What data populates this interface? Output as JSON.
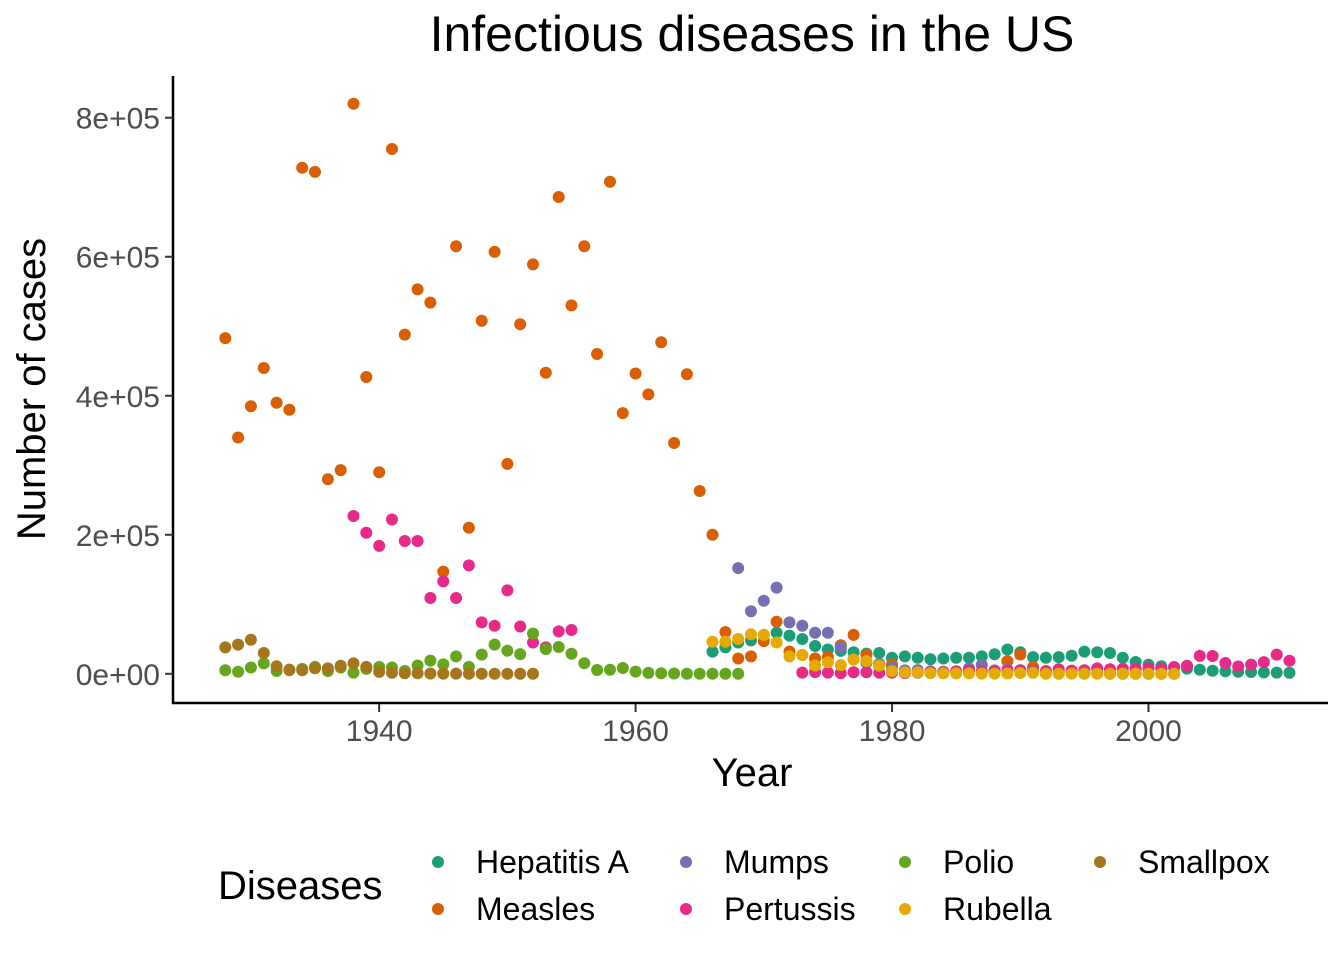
{
  "chart_data": {
    "type": "scatter",
    "title": "Infectious diseases in the US",
    "xlabel": "Year",
    "ylabel": "Number of cases",
    "xlim": [
      1924,
      2014
    ],
    "ylim": [
      -42000,
      860000
    ],
    "x_ticks": [
      1940,
      1960,
      1980,
      2000
    ],
    "x_tick_labels": [
      "1940",
      "1960",
      "1980",
      "2000"
    ],
    "y_ticks": [
      0,
      200000,
      400000,
      600000,
      800000
    ],
    "y_tick_labels": [
      "0e+00",
      "2e+05",
      "4e+05",
      "6e+05",
      "8e+05"
    ],
    "grid": false,
    "legend": {
      "title": "Diseases",
      "position": "bottom",
      "entries": [
        "Hepatitis A",
        "Measles",
        "Mumps",
        "Pertussis",
        "Polio",
        "Rubella",
        "Smallpox"
      ]
    },
    "series": [
      {
        "name": "Hepatitis A",
        "color": "#1b9e77",
        "x": [
          1966,
          1967,
          1968,
          1969,
          1970,
          1971,
          1972,
          1973,
          1974,
          1975,
          1976,
          1977,
          1978,
          1979,
          1980,
          1981,
          1982,
          1983,
          1984,
          1985,
          1986,
          1987,
          1988,
          1989,
          1990,
          1991,
          1992,
          1993,
          1994,
          1995,
          1996,
          1997,
          1998,
          1999,
          2000,
          2001,
          2002,
          2003,
          2004,
          2005,
          2006,
          2007,
          2008,
          2009,
          2010,
          2011
        ],
        "y": [
          32000,
          38000,
          45000,
          48000,
          56000,
          59000,
          55000,
          50000,
          40000,
          35000,
          33000,
          31000,
          29000,
          30000,
          23000,
          25000,
          23000,
          21000,
          22000,
          23000,
          23000,
          25000,
          28000,
          35000,
          31000,
          24000,
          23000,
          24000,
          26000,
          32000,
          31000,
          30000,
          23000,
          17000,
          13000,
          11000,
          9000,
          7500,
          5700,
          4500,
          3600,
          3000,
          2600,
          2000,
          1700,
          1400
        ]
      },
      {
        "name": "Measles",
        "color": "#d95f02",
        "x": [
          1928,
          1929,
          1930,
          1931,
          1932,
          1933,
          1934,
          1935,
          1936,
          1937,
          1938,
          1939,
          1940,
          1941,
          1942,
          1943,
          1944,
          1945,
          1946,
          1947,
          1948,
          1949,
          1950,
          1951,
          1952,
          1953,
          1954,
          1955,
          1956,
          1957,
          1958,
          1959,
          1960,
          1961,
          1962,
          1963,
          1964,
          1965,
          1966,
          1967,
          1968,
          1969,
          1970,
          1971,
          1972,
          1973,
          1974,
          1975,
          1976,
          1977,
          1978,
          1979,
          1980,
          1981,
          1982,
          1983,
          1984,
          1985,
          1986,
          1987,
          1988,
          1989,
          1990,
          1991,
          1992,
          1993,
          1994,
          1995,
          1996,
          1997,
          1998,
          1999,
          2000,
          2001,
          2002
        ],
        "y": [
          483000,
          340000,
          385000,
          440000,
          390000,
          380000,
          728000,
          722000,
          280000,
          293000,
          820000,
          427000,
          290000,
          755000,
          488000,
          553000,
          534000,
          147000,
          615000,
          210000,
          508000,
          607000,
          302000,
          503000,
          589000,
          433000,
          686000,
          530000,
          615000,
          460000,
          708000,
          375000,
          432000,
          402000,
          477000,
          332000,
          431000,
          263000,
          200000,
          60000,
          22000,
          25000,
          47000,
          75000,
          32000,
          27000,
          22000,
          24000,
          41000,
          56000,
          27000,
          14000,
          13500,
          3000,
          1700,
          1500,
          2600,
          2800,
          6200,
          3700,
          3400,
          18200,
          27800,
          9600,
          2200,
          300,
          960,
          300,
          510,
          140,
          100,
          100,
          90,
          120,
          40
        ]
      },
      {
        "name": "Mumps",
        "color": "#7570b3",
        "x": [
          1968,
          1969,
          1970,
          1971,
          1972,
          1973,
          1974,
          1975,
          1976,
          1977,
          1978,
          1979,
          1980,
          1981,
          1982,
          1983,
          1984,
          1985,
          1986,
          1987,
          1988,
          1989,
          1990,
          1991,
          1992,
          1993,
          1994,
          1995,
          1996,
          1997,
          1998,
          1999,
          2000,
          2001,
          2002
        ],
        "y": [
          152000,
          90000,
          105000,
          124000,
          74000,
          69000,
          59000,
          59000,
          38000,
          21000,
          16000,
          14000,
          8600,
          4900,
          5300,
          3400,
          3000,
          3000,
          7800,
          12800,
          4900,
          5700,
          5300,
          4300,
          2600,
          1700,
          1500,
          900,
          750,
          680,
          660,
          390,
          340,
          270,
          270
        ]
      },
      {
        "name": "Pertussis",
        "color": "#e7298a",
        "x": [
          1938,
          1939,
          1940,
          1941,
          1942,
          1943,
          1944,
          1945,
          1946,
          1947,
          1948,
          1949,
          1950,
          1951,
          1952,
          1953,
          1954,
          1955,
          1973,
          1974,
          1975,
          1976,
          1977,
          1978,
          1979,
          1980,
          1981,
          1982,
          1983,
          1984,
          1985,
          1986,
          1987,
          1988,
          1989,
          1990,
          1991,
          1992,
          1993,
          1994,
          1995,
          1996,
          1997,
          1998,
          1999,
          2000,
          2001,
          2002,
          2003,
          2004,
          2005,
          2006,
          2007,
          2008,
          2009,
          2010,
          2011
        ],
        "y": [
          227000,
          203000,
          184000,
          222000,
          191000,
          191000,
          109000,
          133000,
          109000,
          156000,
          74000,
          69000,
          120000,
          68000,
          45000,
          38000,
          61000,
          63000,
          1800,
          2400,
          1700,
          1000,
          2200,
          2100,
          1600,
          1700,
          1200,
          1900,
          2500,
          2300,
          3600,
          4200,
          2800,
          3400,
          4100,
          4600,
          2700,
          4100,
          6600,
          4600,
          5100,
          7800,
          6600,
          7400,
          7300,
          7900,
          7600,
          9800,
          11600,
          25800,
          25600,
          15600,
          10500,
          13300,
          16800,
          27600,
          18700
        ]
      },
      {
        "name": "Polio",
        "color": "#66a61e",
        "x": [
          1928,
          1929,
          1930,
          1931,
          1932,
          1933,
          1934,
          1935,
          1936,
          1937,
          1938,
          1939,
          1940,
          1941,
          1942,
          1943,
          1944,
          1945,
          1946,
          1947,
          1948,
          1949,
          1950,
          1951,
          1952,
          1953,
          1954,
          1955,
          1956,
          1957,
          1958,
          1959,
          1960,
          1961,
          1962,
          1963,
          1964,
          1965,
          1966,
          1967,
          1968
        ],
        "y": [
          5000,
          3000,
          9000,
          15000,
          4000,
          5000,
          7000,
          10000,
          4000,
          9000,
          1700,
          7000,
          9800,
          9000,
          4000,
          12000,
          19000,
          13600,
          25000,
          10000,
          27600,
          42000,
          33300,
          28400,
          57900,
          35600,
          38500,
          28900,
          15100,
          5500,
          5800,
          8400,
          3200,
          1300,
          910,
          450,
          120,
          70,
          110,
          40,
          50
        ]
      },
      {
        "name": "Rubella",
        "color": "#e6ab02",
        "x": [
          1966,
          1967,
          1968,
          1969,
          1970,
          1971,
          1972,
          1973,
          1974,
          1975,
          1976,
          1977,
          1978,
          1979,
          1980,
          1981,
          1982,
          1983,
          1984,
          1985,
          1986,
          1987,
          1988,
          1989,
          1990,
          1991,
          1992,
          1993,
          1994,
          1995,
          1996,
          1997,
          1998,
          1999,
          2000,
          2001,
          2002
        ],
        "y": [
          46000,
          46000,
          50000,
          57000,
          56000,
          45000,
          25000,
          27000,
          11900,
          16600,
          12500,
          20400,
          18300,
          11800,
          3900,
          2100,
          2300,
          970,
          750,
          630,
          550,
          310,
          230,
          400,
          1100,
          1400,
          160,
          190,
          230,
          130,
          240,
          180,
          360,
          270,
          180,
          20,
          20
        ]
      },
      {
        "name": "Smallpox",
        "color": "#a6761d",
        "x": [
          1928,
          1929,
          1930,
          1931,
          1932,
          1933,
          1934,
          1935,
          1936,
          1937,
          1938,
          1939,
          1940,
          1941,
          1942,
          1943,
          1944,
          1945,
          1946,
          1947,
          1948,
          1949,
          1950,
          1951,
          1952
        ],
        "y": [
          38000,
          42000,
          49000,
          30000,
          11000,
          6000,
          5000,
          8000,
          7800,
          11700,
          14900,
          9900,
          2800,
          1400,
          800,
          700,
          400,
          350,
          340,
          180,
          60,
          50,
          40,
          10,
          10
        ]
      }
    ]
  }
}
